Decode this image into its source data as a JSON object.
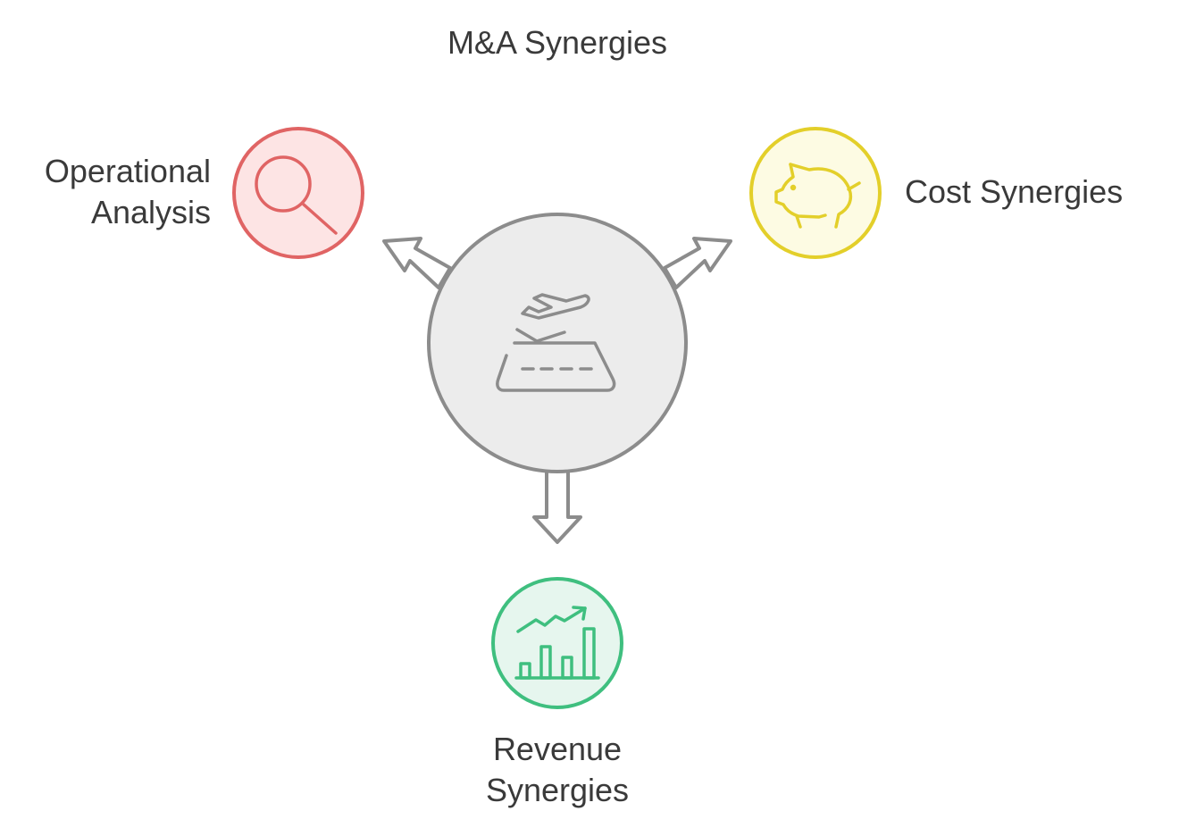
{
  "title": "M&A Synergies",
  "center": {
    "icon": "airplane-takeoff-runway-icon",
    "fill": "#ececec",
    "stroke": "#8c8c8c"
  },
  "nodes": [
    {
      "id": "operational",
      "label": "Operational\nAnalysis",
      "icon": "magnifying-glass-icon",
      "fill": "#fde4e4",
      "stroke": "#e06464"
    },
    {
      "id": "cost",
      "label": "Cost Synergies",
      "icon": "piggy-bank-icon",
      "fill": "#fdfbe3",
      "stroke": "#e3cf2a"
    },
    {
      "id": "revenue",
      "label": "Revenue\nSynergies",
      "icon": "growth-chart-icon",
      "fill": "#e6f6ee",
      "stroke": "#3fbf7f"
    }
  ],
  "arrow_color": "#8c8c8c"
}
